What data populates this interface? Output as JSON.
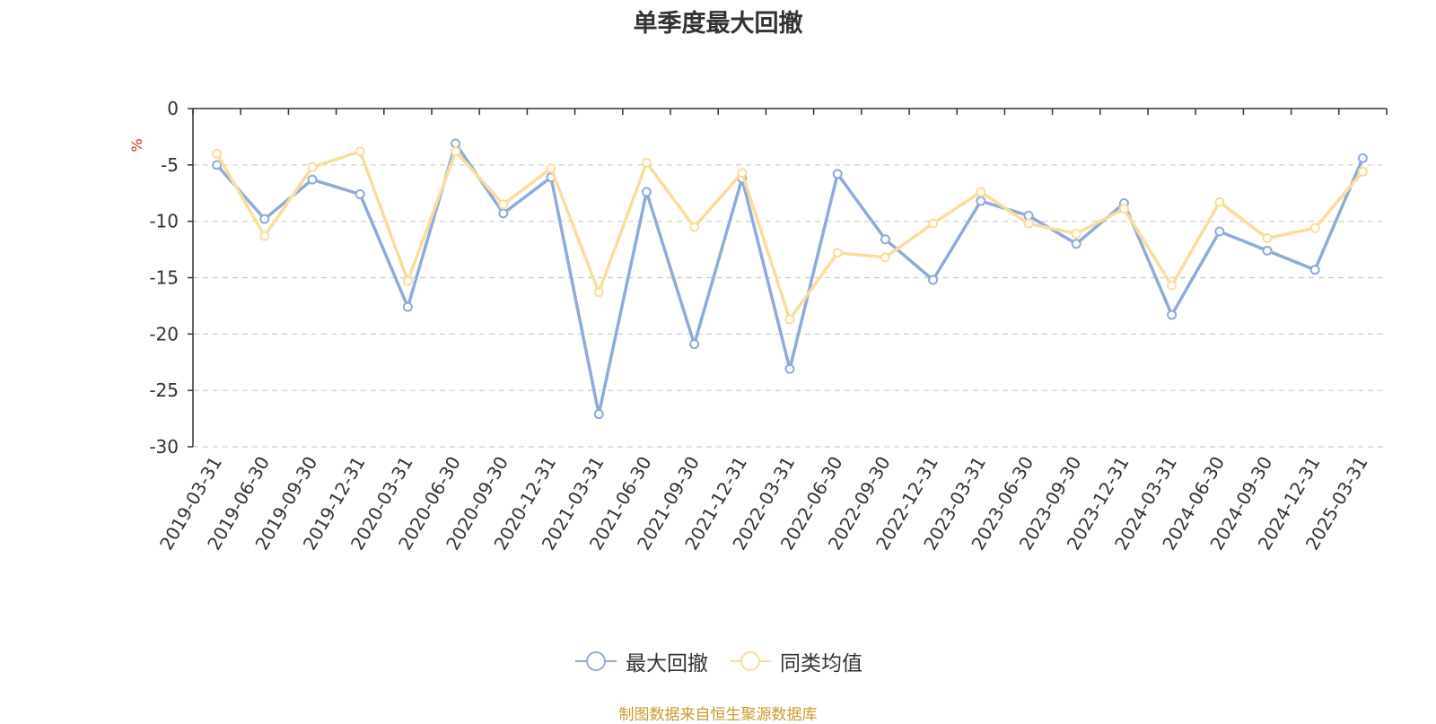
{
  "chart_data": {
    "type": "line",
    "title": "单季度最大回撤",
    "ylabel": "%",
    "ylim": [
      -30,
      0
    ],
    "yticks": [
      "0",
      "-5",
      "-10",
      "-15",
      "-20",
      "-25",
      "-30"
    ],
    "categories": [
      "2019-03-31",
      "2019-06-30",
      "2019-09-30",
      "2019-12-31",
      "2020-03-31",
      "2020-06-30",
      "2020-09-30",
      "2020-12-31",
      "2021-03-31",
      "2021-06-30",
      "2021-09-30",
      "2021-12-31",
      "2022-03-31",
      "2022-06-30",
      "2022-09-30",
      "2022-12-31",
      "2023-03-31",
      "2023-06-30",
      "2023-09-30",
      "2023-12-31",
      "2024-03-31",
      "2024-06-30",
      "2024-09-30",
      "2024-12-31",
      "2025-03-31"
    ],
    "series": [
      {
        "name": "最大回撤",
        "color": "#8eabdc",
        "values": [
          -5.0,
          -9.8,
          -6.3,
          -7.6,
          -17.6,
          -3.1,
          -9.3,
          -6.1,
          -27.1,
          -7.4,
          -20.9,
          -6.2,
          -23.1,
          -5.8,
          -11.6,
          -15.2,
          -8.2,
          -9.5,
          -12.0,
          -8.4,
          -18.3,
          -10.9,
          -12.6,
          -14.3,
          -4.4
        ]
      },
      {
        "name": "同类均值",
        "color": "#fcdc9c",
        "values": [
          -4.0,
          -11.3,
          -5.2,
          -3.8,
          -15.3,
          -3.8,
          -8.5,
          -5.3,
          -16.3,
          -4.8,
          -10.5,
          -5.7,
          -18.7,
          -12.8,
          -13.2,
          -10.2,
          -7.4,
          -10.2,
          -11.1,
          -8.9,
          -15.7,
          -8.3,
          -11.5,
          -10.6,
          -5.6
        ]
      }
    ],
    "grid": true,
    "legend_position": "bottom-center"
  },
  "source_note": "制图数据来自恒生聚源数据库"
}
